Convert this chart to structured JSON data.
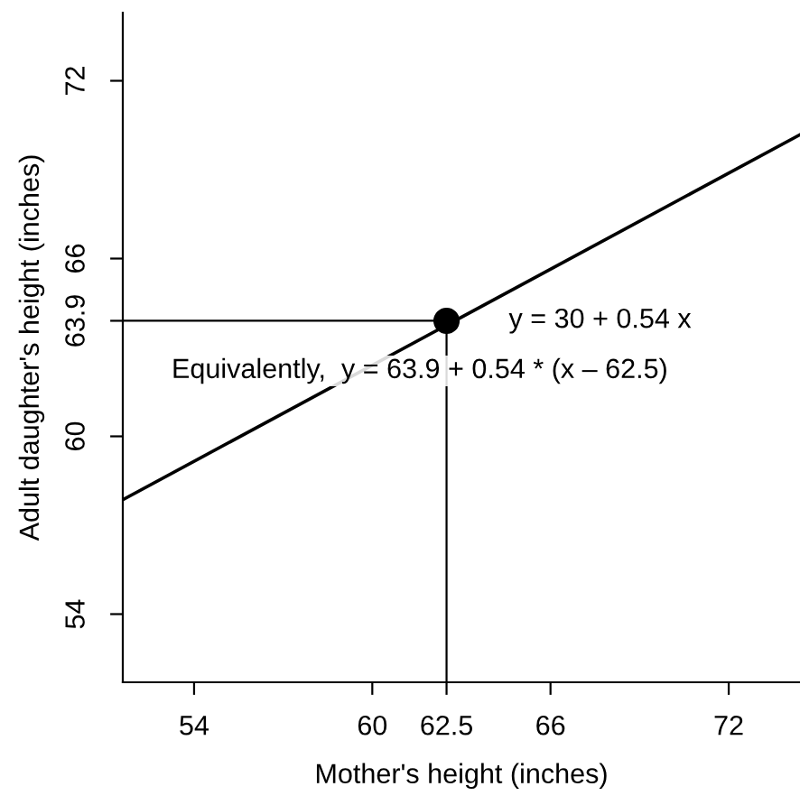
{
  "chart_data": {
    "type": "line",
    "xlabel": "Mother's height (inches)",
    "ylabel": "Adult daughter's height (inches)",
    "xlim": [
      51.6,
      74.4
    ],
    "ylim": [
      51.7,
      74.3
    ],
    "xticks": [
      54,
      60,
      62.5,
      66,
      72
    ],
    "yticks": [
      54,
      60,
      63.9,
      66,
      72
    ],
    "series": [
      {
        "color": "#000000",
        "x": [
          51.6,
          74.4
        ],
        "values": [
          57.86,
          70.18
        ],
        "marker": "none"
      },
      {
        "type": "scatter",
        "color": "#000000",
        "x": [
          62.5
        ],
        "values": [
          63.9
        ],
        "marker": "circle"
      }
    ],
    "ref_lines": [
      {
        "axis": "x",
        "value": 62.5,
        "color": "#000000"
      },
      {
        "axis": "y",
        "value": 63.9,
        "color": "#000000"
      }
    ],
    "annotations": [
      "y = 30 + 0.54 x",
      "Equivalently,  y = 63.9 + 0.54 * (x – 62.5)"
    ],
    "grid": false,
    "legend": false
  }
}
